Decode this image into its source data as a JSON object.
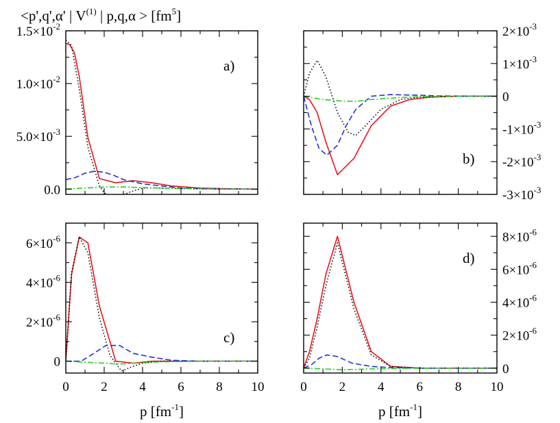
{
  "figure_title": {
    "prefix": "<p',q',α' | V",
    "sup1": "(1)",
    "middle": " | p,q,α > [fm",
    "sup2": "5",
    "suffix": "]"
  },
  "colors": {
    "red_solid": "#e8141c",
    "black_dotted": "#000000",
    "blue_dashed": "#1f2fd8",
    "green_dashdot": "#22d020"
  },
  "chart_data": [
    {
      "type": "line",
      "panel": "a",
      "label": "a)",
      "label_position": "top-right",
      "xlim": [
        0,
        10
      ],
      "ylim": [
        -0.0005,
        0.015
      ],
      "xlabel": "",
      "ylabel": "",
      "y_axis_side": "left",
      "x_tick_labels_shown": false,
      "x_ticks": [
        {
          "value": 0,
          "label": "0"
        },
        {
          "value": 2,
          "label": "2"
        },
        {
          "value": 4,
          "label": "4"
        },
        {
          "value": 6,
          "label": "6"
        },
        {
          "value": 8,
          "label": "8"
        },
        {
          "value": 10,
          "label": "10"
        }
      ],
      "y_ticks": [
        {
          "value": 0.0,
          "mantissa": "0.0",
          "exp": ""
        },
        {
          "value": 0.005,
          "mantissa": "5.0×10",
          "exp": "-3"
        },
        {
          "value": 0.01,
          "mantissa": "1.0×10",
          "exp": "-2"
        },
        {
          "value": 0.015,
          "mantissa": "1.5×10",
          "exp": "-2"
        }
      ],
      "series": [
        {
          "name": "red solid",
          "style": "solid",
          "color": "#e8141c",
          "x": [
            0,
            0.2,
            0.45,
            0.7,
            1.15,
            1.75,
            2.6,
            3.5,
            4.5,
            5.5,
            7,
            8.5,
            10
          ],
          "y": [
            0.0138,
            0.0137,
            0.0129,
            0.0107,
            0.0049,
            0.001,
            0.0006,
            0.0008,
            0.0006,
            0.0003,
            0.0001,
            3e-05,
            0.0
          ]
        },
        {
          "name": "black dotted",
          "style": "dotted",
          "color": "#000000",
          "x": [
            0,
            0.3,
            0.7,
            1.15,
            1.75,
            2.2,
            2.7,
            3.3,
            4,
            5,
            6,
            7,
            8,
            10
          ],
          "y": [
            0.0141,
            0.0136,
            0.0095,
            0.004,
            0.0003,
            -0.0008,
            -0.0008,
            -0.0003,
            0.0001,
            0.0001,
            5e-05,
            2e-05,
            0.0,
            0.0
          ]
        },
        {
          "name": "blue dashed",
          "style": "dashed",
          "color": "#1f2fd8",
          "x": [
            0,
            0.5,
            1,
            1.5,
            2,
            2.5,
            3,
            4,
            5,
            6,
            7,
            8,
            10
          ],
          "y": [
            0.0009,
            0.0011,
            0.0015,
            0.0017,
            0.0016,
            0.0013,
            0.0009,
            0.0005,
            0.0003,
            0.0001,
            5e-05,
            2e-05,
            0.0
          ]
        },
        {
          "name": "green dash-dot",
          "style": "dashdot",
          "color": "#22d020",
          "x": [
            0,
            1,
            2,
            3,
            4,
            6,
            8,
            10
          ],
          "y": [
            0.0,
            0.0001,
            0.0002,
            0.0002,
            0.00015,
            5e-05,
            0.0,
            0.0
          ]
        }
      ]
    },
    {
      "type": "line",
      "panel": "b",
      "label": "b)",
      "label_position": "bottom-right",
      "xlim": [
        0,
        10
      ],
      "ylim": [
        -0.003,
        0.002
      ],
      "xlabel": "",
      "ylabel": "",
      "y_axis_side": "right",
      "x_tick_labels_shown": false,
      "x_ticks": [
        {
          "value": 0,
          "label": "0"
        },
        {
          "value": 2,
          "label": "2"
        },
        {
          "value": 4,
          "label": "4"
        },
        {
          "value": 6,
          "label": "6"
        },
        {
          "value": 8,
          "label": "8"
        },
        {
          "value": 10,
          "label": "10"
        }
      ],
      "y_ticks": [
        {
          "value": 0.002,
          "mantissa": "2×10",
          "exp": "-3"
        },
        {
          "value": 0.001,
          "mantissa": "1×10",
          "exp": "-3"
        },
        {
          "value": 0.0,
          "mantissa": "0",
          "exp": ""
        },
        {
          "value": -0.001,
          "mantissa": "-1×10",
          "exp": "-3"
        },
        {
          "value": -0.002,
          "mantissa": "-2×10",
          "exp": "-3"
        },
        {
          "value": -0.003,
          "mantissa": "-3×10",
          "exp": "-3"
        }
      ],
      "series": [
        {
          "name": "red solid",
          "style": "solid",
          "color": "#e8141c",
          "x": [
            0,
            0.3,
            0.7,
            1.15,
            1.75,
            2.6,
            3.5,
            4.5,
            5.5,
            6.5,
            8,
            10
          ],
          "y": [
            0.0,
            -0.0001,
            -0.0005,
            -0.0014,
            -0.0024,
            -0.0019,
            -0.0009,
            -0.0003,
            -0.0001,
            -3e-05,
            0.0,
            0.0
          ]
        },
        {
          "name": "black dotted",
          "style": "dotted",
          "color": "#000000",
          "x": [
            0,
            0.3,
            0.7,
            1.15,
            1.75,
            2.3,
            2.7,
            3.2,
            4,
            5,
            6,
            7,
            10
          ],
          "y": [
            0.0,
            0.0007,
            0.0011,
            0.0006,
            -0.0005,
            -0.0011,
            -0.0012,
            -0.0009,
            -0.0004,
            -0.0001,
            -3e-05,
            0.0,
            0.0
          ]
        },
        {
          "name": "blue dashed",
          "style": "dashed",
          "color": "#1f2fd8",
          "x": [
            0,
            0.4,
            0.8,
            1.2,
            1.75,
            2.2,
            2.7,
            3.5,
            4.5,
            6,
            7,
            10
          ],
          "y": [
            0.0,
            -0.0009,
            -0.0016,
            -0.0018,
            -0.0015,
            -0.0009,
            -0.0004,
            0.0,
            5e-05,
            3e-05,
            1e-05,
            0.0
          ]
        },
        {
          "name": "green dash-dot",
          "style": "dashdot",
          "color": "#22d020",
          "x": [
            0,
            1,
            2,
            2.7,
            3.5,
            5,
            6,
            8,
            10
          ],
          "y": [
            0.0,
            -0.0001,
            -0.00015,
            -0.00016,
            -0.0001,
            -4e-05,
            -1e-05,
            0.0,
            0.0
          ]
        }
      ]
    },
    {
      "type": "line",
      "panel": "c",
      "label": "c)",
      "label_position": "bottom-right",
      "xlim": [
        0,
        10
      ],
      "ylim": [
        -6e-07,
        7e-06
      ],
      "xlabel": "p [fm",
      "xlabel_sup": "-1",
      "xlabel_suffix": "]",
      "ylabel": "",
      "y_axis_side": "left",
      "x_tick_labels_shown": true,
      "x_ticks": [
        {
          "value": 0,
          "label": "0"
        },
        {
          "value": 2,
          "label": "2"
        },
        {
          "value": 4,
          "label": "4"
        },
        {
          "value": 6,
          "label": "6"
        },
        {
          "value": 8,
          "label": "8"
        },
        {
          "value": 10,
          "label": "10"
        }
      ],
      "y_ticks": [
        {
          "value": 0,
          "mantissa": "0",
          "exp": ""
        },
        {
          "value": 2e-06,
          "mantissa": "2×10",
          "exp": "-6"
        },
        {
          "value": 4e-06,
          "mantissa": "4×10",
          "exp": "-6"
        },
        {
          "value": 6e-06,
          "mantissa": "6×10",
          "exp": "-6"
        }
      ],
      "series": [
        {
          "name": "red solid",
          "style": "solid",
          "color": "#e8141c",
          "x": [
            0,
            0.3,
            0.7,
            1.15,
            1.75,
            2.6,
            3.5,
            4.5,
            6,
            8,
            10
          ],
          "y": [
            0.0,
            4.4e-06,
            6.3e-06,
            6e-06,
            2.8e-06,
            0.0,
            -1e-07,
            0.0,
            0.0,
            0.0,
            0.0
          ]
        },
        {
          "name": "black dotted",
          "style": "dotted",
          "color": "#000000",
          "x": [
            0,
            0.3,
            0.7,
            1.15,
            1.75,
            2.3,
            2.9,
            3.4,
            4,
            5,
            6,
            8,
            10
          ],
          "y": [
            0.0,
            4.5e-06,
            6.3e-06,
            5.5e-06,
            2.2e-06,
            3e-07,
            -5e-07,
            -3e-07,
            -1e-07,
            0.0,
            0.0,
            0.0,
            0.0
          ]
        },
        {
          "name": "blue dashed",
          "style": "dashed",
          "color": "#1f2fd8",
          "x": [
            0,
            0.8,
            1.3,
            2.1,
            2.8,
            3.5,
            4.5,
            5.5,
            7,
            10
          ],
          "y": [
            0.0,
            0.0,
            3e-07,
            8e-07,
            8e-07,
            4e-07,
            2e-07,
            5e-08,
            0.0,
            0.0
          ]
        },
        {
          "name": "green dash-dot",
          "style": "dashdot",
          "color": "#22d020",
          "x": [
            0,
            1,
            2,
            2.8,
            3.5,
            5,
            7,
            10
          ],
          "y": [
            0.0,
            -5e-08,
            -1e-07,
            -1.5e-07,
            -1e-07,
            -3e-08,
            0.0,
            0.0
          ]
        }
      ]
    },
    {
      "type": "line",
      "panel": "d",
      "label": "d)",
      "label_position": "top-right",
      "xlim": [
        0,
        10
      ],
      "ylim": [
        -3e-07,
        8.8e-06
      ],
      "xlabel": "p [fm",
      "xlabel_sup": "-1",
      "xlabel_suffix": "]",
      "ylabel": "",
      "y_axis_side": "right",
      "x_tick_labels_shown": true,
      "x_ticks": [
        {
          "value": 0,
          "label": "0"
        },
        {
          "value": 2,
          "label": "2"
        },
        {
          "value": 4,
          "label": "4"
        },
        {
          "value": 6,
          "label": "6"
        },
        {
          "value": 8,
          "label": "8"
        },
        {
          "value": 10,
          "label": "10"
        }
      ],
      "y_ticks": [
        {
          "value": 8e-06,
          "mantissa": "8×10",
          "exp": "-6"
        },
        {
          "value": 6e-06,
          "mantissa": "6×10",
          "exp": "-6"
        },
        {
          "value": 4e-06,
          "mantissa": "4×10",
          "exp": "-6"
        },
        {
          "value": 2e-06,
          "mantissa": "2×10",
          "exp": "-6"
        },
        {
          "value": 0,
          "mantissa": "0",
          "exp": ""
        }
      ],
      "series": [
        {
          "name": "red solid",
          "style": "solid",
          "color": "#e8141c",
          "x": [
            0,
            0.3,
            0.7,
            1.15,
            1.75,
            2.6,
            3.5,
            4.5,
            6,
            8,
            10
          ],
          "y": [
            0.0,
            1e-06,
            3e-06,
            5.7e-06,
            8e-06,
            4e-06,
            1e-06,
            1e-07,
            0.0,
            0.0,
            0.0
          ]
        },
        {
          "name": "black dotted",
          "style": "dotted",
          "color": "#000000",
          "x": [
            0,
            0.3,
            0.7,
            1.15,
            1.75,
            2.6,
            3.5,
            4.5,
            6,
            8,
            10
          ],
          "y": [
            0.0,
            6e-07,
            2.5e-06,
            5e-06,
            7.6e-06,
            3.6e-06,
            8e-07,
            1e-07,
            0.0,
            0.0,
            0.0
          ]
        },
        {
          "name": "blue dashed",
          "style": "dashed",
          "color": "#1f2fd8",
          "x": [
            0,
            0.4,
            0.8,
            1.2,
            1.75,
            2.5,
            3.5,
            4.5,
            6,
            10
          ],
          "y": [
            0.0,
            2e-07,
            6e-07,
            8e-07,
            7e-07,
            3e-07,
            1e-07,
            3e-08,
            0.0,
            0.0
          ]
        },
        {
          "name": "green dash-dot",
          "style": "dashdot",
          "color": "#22d020",
          "x": [
            0,
            1,
            2,
            3.5,
            5,
            7,
            10
          ],
          "y": [
            0.0,
            -5e-08,
            -1e-07,
            -5e-08,
            -2e-08,
            0.0,
            0.0
          ]
        }
      ]
    }
  ]
}
